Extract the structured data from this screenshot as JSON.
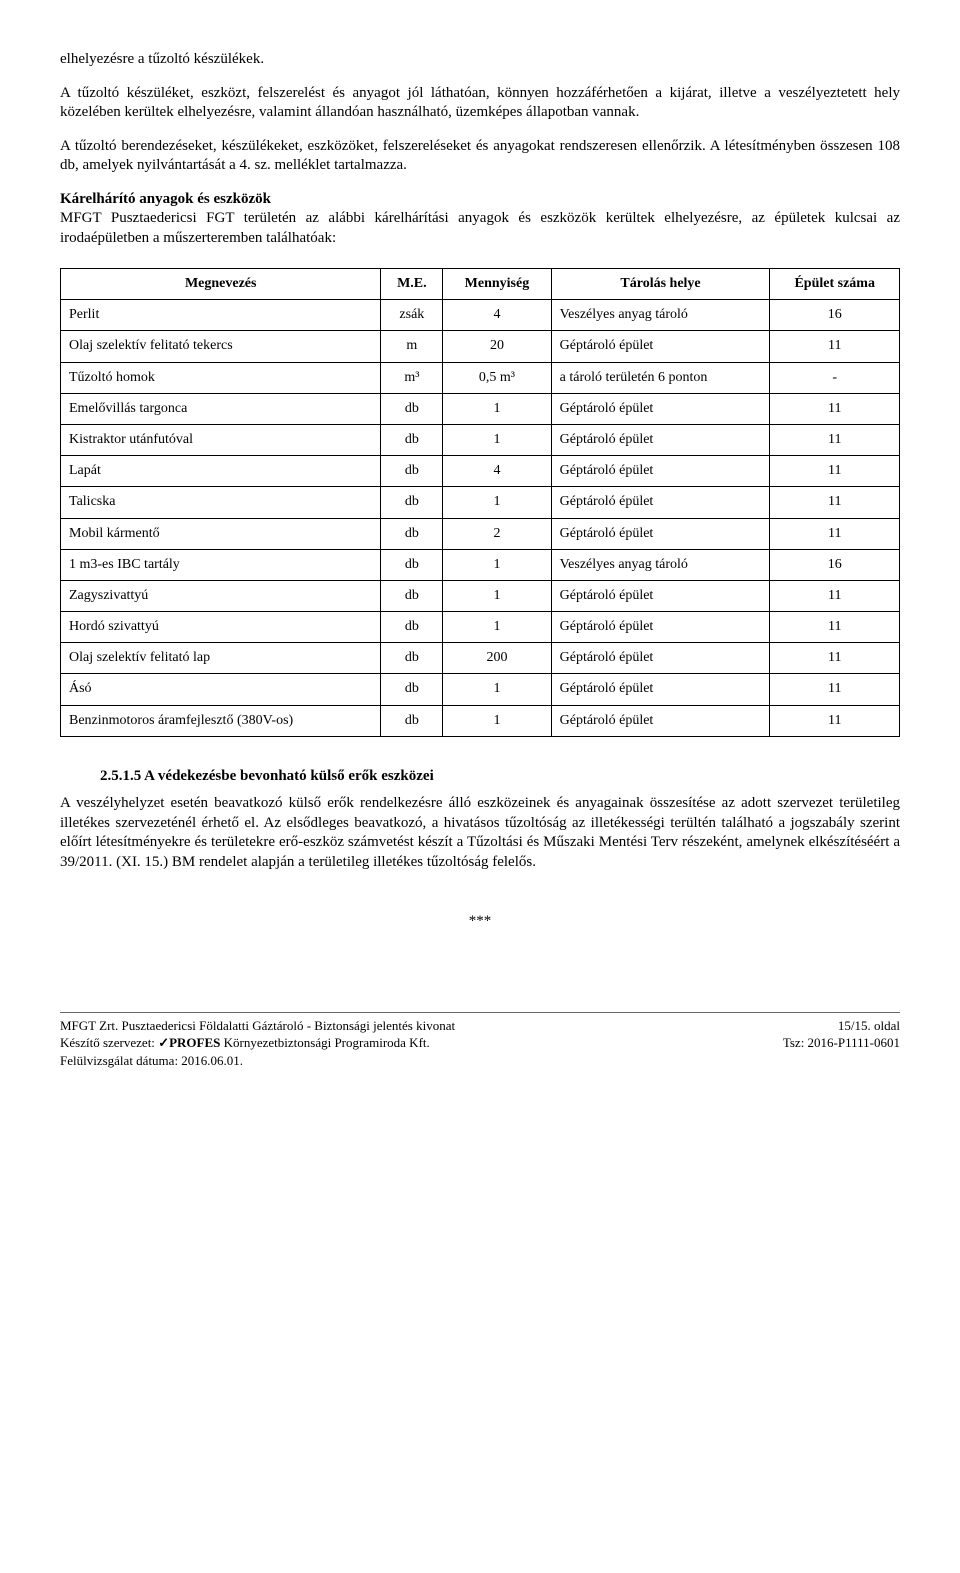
{
  "paragraphs": {
    "p1a": "elhelyezésre a tűzoltó készülékek.",
    "p1b": "A tűzoltó készüléket, eszközt, felszerelést és anyagot jól láthatóan, könnyen hozzáférhetően a kijárat, illetve a veszélyeztetett hely közelében kerültek elhelyezésre, valamint állandóan használható, üzemképes állapotban vannak.",
    "p1c": "A tűzoltó berendezéseket, készülékeket, eszközöket, felszereléseket és anyagokat rendszeresen ellenőrzik. A létesítményben összesen 108 db, amelyek nyilvántartását a 4. sz. melléklet tartalmazza.",
    "p2title": "Kárelhárító anyagok és eszközök",
    "p2body": "MFGT Pusztaedericsi FGT területén az alábbi kárelhárítási anyagok és eszközök kerültek elhelyezésre, az épületek kulcsai az irodaépületben a műszerteremben találhatóak:",
    "section_heading": "2.5.1.5 A védekezésbe bevonható külső erők eszközei",
    "p3": "A veszélyhelyzet esetén beavatkozó külső erők rendelkezésre álló eszközeinek és anyagainak összesítése az adott szervezet területileg illetékes szervezeténél érhető el. Az elsődleges beavatkozó, a hivatásos tűzoltóság az illetékességi terültén található a jogszabály szerint előírt létesítményekre és területekre erő-eszköz számvetést készít a Tűzoltási és Műszaki Mentési Terv részeként, amelynek elkészítéséért a 39/2011. (XI. 15.) BM rendelet alapján a területileg illetékes tűzoltóság felelős.",
    "stars": "***"
  },
  "table": {
    "headers": [
      "Megnevezés",
      "M.E.",
      "Mennyiség",
      "Tárolás helye",
      "Épület száma"
    ],
    "rows": [
      [
        "Perlit",
        "zsák",
        "4",
        "Veszélyes anyag tároló",
        "16"
      ],
      [
        "Olaj szelektív felitató tekercs",
        "m",
        "20",
        "Géptároló épület",
        "11"
      ],
      [
        "Tűzoltó homok",
        "m³",
        "0,5 m³",
        "a tároló területén 6 ponton",
        "-"
      ],
      [
        "Emelővillás targonca",
        "db",
        "1",
        "Géptároló épület",
        "11"
      ],
      [
        "Kistraktor utánfutóval",
        "db",
        "1",
        "Géptároló épület",
        "11"
      ],
      [
        "Lapát",
        "db",
        "4",
        "Géptároló épület",
        "11"
      ],
      [
        "Talicska",
        "db",
        "1",
        "Géptároló épület",
        "11"
      ],
      [
        "Mobil kármentő",
        "db",
        "2",
        "Géptároló épület",
        "11"
      ],
      [
        "1 m3-es IBC tartály",
        "db",
        "1",
        "Veszélyes anyag tároló",
        "16"
      ],
      [
        "Zagyszivattyú",
        "db",
        "1",
        "Géptároló épület",
        "11"
      ],
      [
        "Hordó szivattyú",
        "db",
        "1",
        "Géptároló épület",
        "11"
      ],
      [
        "Olaj szelektív felitató lap",
        "db",
        "200",
        "Géptároló épület",
        "11"
      ],
      [
        "Ásó",
        "db",
        "1",
        "Géptároló épület",
        "11"
      ],
      [
        "Benzinmotoros áramfejlesztő (380V-os)",
        "db",
        "1",
        "Géptároló épület",
        "11"
      ]
    ]
  },
  "footer": {
    "left_line1": "MFGT Zrt. Pusztaedericsi Földalatti Gáztároló - Biztonsági jelentés kivonat",
    "left_line2_a": "Készítő szervezet: ",
    "left_line2_b": "✓PROFES",
    "left_line2_c": " Környezetbiztonsági Programiroda Kft.",
    "left_line3": "Felülvizsgálat dátuma: 2016.06.01.",
    "right_line1": "15/15. oldal",
    "right_line2": "Tsz: 2016-P1111-0601"
  }
}
